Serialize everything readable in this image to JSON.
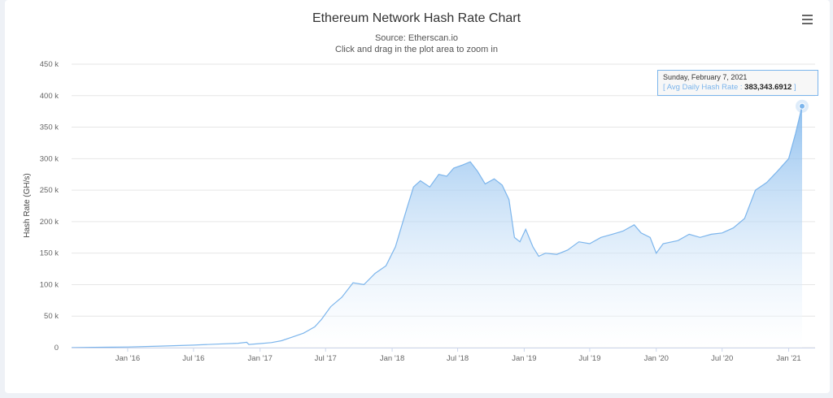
{
  "page": {
    "title": "Ethereum Network Hash Rate Chart",
    "subtitle_source": "Source: Etherscan.io",
    "subtitle_hint": "Click and drag in the plot area to zoom in",
    "menu_icon": "hamburger-menu-icon"
  },
  "colors": {
    "line": "#7cb5ec",
    "area_top": "#7cb5ec",
    "area_bottom": "#ffffff",
    "grid": "#e6e6e6",
    "tooltip_border": "#7cb5ec"
  },
  "tooltip": {
    "date": "Sunday, February 7, 2021",
    "open_bracket": "[",
    "series_label": "Avg Daily Hash Rate",
    "separator": ":",
    "value": "383,343.6912",
    "close_bracket": "]"
  },
  "chart_data": {
    "type": "area",
    "title": "Ethereum Network Hash Rate Chart",
    "subtitle": "Source: Etherscan.io",
    "xlabel": "",
    "ylabel": "Hash Rate (GH/s)",
    "ylim": [
      0,
      450000
    ],
    "y_ticks": [
      0,
      50000,
      100000,
      150000,
      200000,
      250000,
      300000,
      350000,
      400000,
      450000
    ],
    "y_tick_labels": [
      "0",
      "50 k",
      "100 k",
      "150 k",
      "200 k",
      "250 k",
      "300 k",
      "350 k",
      "400 k",
      "450 k"
    ],
    "x_range": [
      "2015-07-30",
      "2021-03-15"
    ],
    "x_ticks": [
      "2016-01-01",
      "2016-07-01",
      "2017-01-01",
      "2017-07-01",
      "2018-01-01",
      "2018-07-01",
      "2019-01-01",
      "2019-07-01",
      "2020-01-01",
      "2020-07-01",
      "2021-01-01"
    ],
    "x_tick_labels": [
      "Jan '16",
      "Jul '16",
      "Jan '17",
      "Jul '17",
      "Jan '18",
      "Jul '18",
      "Jan '19",
      "Jul '19",
      "Jan '20",
      "Jul '20",
      "Jan '21"
    ],
    "grid": "horizontal",
    "legend": "none",
    "series": [
      {
        "name": "Avg Daily Hash Rate",
        "points": [
          [
            "2015-07-30",
            0
          ],
          [
            "2015-10-01",
            500
          ],
          [
            "2016-01-01",
            1000
          ],
          [
            "2016-04-01",
            2500
          ],
          [
            "2016-07-01",
            4000
          ],
          [
            "2016-09-01",
            5500
          ],
          [
            "2016-11-01",
            7000
          ],
          [
            "2016-11-25",
            8500
          ],
          [
            "2016-12-01",
            5000
          ],
          [
            "2017-01-01",
            6500
          ],
          [
            "2017-02-01",
            8000
          ],
          [
            "2017-03-01",
            11000
          ],
          [
            "2017-04-01",
            17000
          ],
          [
            "2017-05-01",
            23000
          ],
          [
            "2017-06-01",
            33000
          ],
          [
            "2017-06-20",
            45000
          ],
          [
            "2017-07-15",
            65000
          ],
          [
            "2017-08-15",
            80000
          ],
          [
            "2017-09-15",
            103000
          ],
          [
            "2017-10-15",
            100000
          ],
          [
            "2017-11-15",
            118000
          ],
          [
            "2017-12-15",
            130000
          ],
          [
            "2018-01-10",
            160000
          ],
          [
            "2018-02-10",
            220000
          ],
          [
            "2018-03-01",
            255000
          ],
          [
            "2018-03-20",
            265000
          ],
          [
            "2018-04-15",
            255000
          ],
          [
            "2018-05-10",
            275000
          ],
          [
            "2018-06-01",
            272000
          ],
          [
            "2018-06-20",
            285000
          ],
          [
            "2018-07-15",
            290000
          ],
          [
            "2018-08-05",
            295000
          ],
          [
            "2018-08-25",
            280000
          ],
          [
            "2018-09-15",
            260000
          ],
          [
            "2018-10-10",
            268000
          ],
          [
            "2018-11-01",
            258000
          ],
          [
            "2018-11-20",
            235000
          ],
          [
            "2018-12-05",
            175000
          ],
          [
            "2018-12-20",
            168000
          ],
          [
            "2019-01-05",
            188000
          ],
          [
            "2019-01-25",
            160000
          ],
          [
            "2019-02-10",
            145000
          ],
          [
            "2019-03-01",
            150000
          ],
          [
            "2019-04-01",
            148000
          ],
          [
            "2019-05-01",
            155000
          ],
          [
            "2019-06-01",
            168000
          ],
          [
            "2019-07-01",
            165000
          ],
          [
            "2019-08-01",
            175000
          ],
          [
            "2019-09-01",
            180000
          ],
          [
            "2019-10-01",
            185000
          ],
          [
            "2019-11-01",
            195000
          ],
          [
            "2019-11-20",
            182000
          ],
          [
            "2019-12-15",
            175000
          ],
          [
            "2020-01-01",
            150000
          ],
          [
            "2020-01-20",
            165000
          ],
          [
            "2020-03-01",
            170000
          ],
          [
            "2020-04-01",
            180000
          ],
          [
            "2020-05-01",
            175000
          ],
          [
            "2020-06-01",
            180000
          ],
          [
            "2020-07-01",
            182000
          ],
          [
            "2020-08-01",
            190000
          ],
          [
            "2020-09-01",
            205000
          ],
          [
            "2020-10-01",
            250000
          ],
          [
            "2020-11-01",
            262000
          ],
          [
            "2020-12-01",
            280000
          ],
          [
            "2021-01-01",
            300000
          ],
          [
            "2021-01-20",
            340000
          ],
          [
            "2021-02-07",
            383343.6912
          ]
        ]
      }
    ],
    "highlighted_point": {
      "x": "2021-02-07",
      "y": 383343.6912
    }
  }
}
